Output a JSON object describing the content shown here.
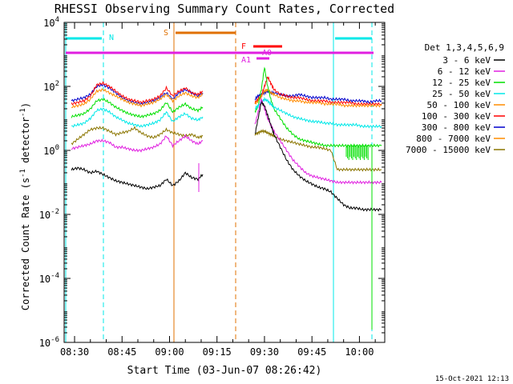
{
  "chart_data": {
    "type": "line",
    "title": "RHESSI Observing Summary Count Rates, Corrected",
    "xlabel": "Start Time (03-Jun-07 08:26:42)",
    "ylabel_main": "Corrected Count Rate (s",
    "ylabel_sup1": "-1",
    "ylabel_mid": " detector",
    "ylabel_sup2": "-1",
    "ylabel_end": ")",
    "timestamp": "15-Oct-2021 12:13",
    "x_ticks": [
      "08:30",
      "08:45",
      "09:00",
      "09:15",
      "09:30",
      "09:45",
      "10:00"
    ],
    "x_tick_minutes": [
      510,
      525,
      540,
      555,
      570,
      585,
      600
    ],
    "xlim_minutes": [
      506.7,
      608.0
    ],
    "y_log": true,
    "ylim_exp": [
      -6,
      4
    ],
    "y_tick_exps": [
      4,
      2,
      0,
      -2,
      -4,
      -6
    ],
    "y_tick_base": "10",
    "legend_title": "Det 1,3,4,5,6,9",
    "series": [
      {
        "name": "3 - 6 keV",
        "color": "#000000"
      },
      {
        "name": "6 - 12 keV",
        "color": "#e020e0"
      },
      {
        "name": "12 - 25 keV",
        "color": "#00e000"
      },
      {
        "name": "25 - 50 keV",
        "color": "#00e8e8"
      },
      {
        "name": "50 - 100 keV",
        "color": "#ff8c00"
      },
      {
        "name": "100 - 300 keV",
        "color": "#ff0000"
      },
      {
        "name": "300 - 800 keV",
        "color": "#0000cc"
      },
      {
        "name": "800 - 7000 keV",
        "color": "#ff8c00"
      },
      {
        "name": "7000 - 15000 keV",
        "color": "#8b7500"
      }
    ],
    "flags": [
      {
        "label": "N",
        "color": "#00e8e8"
      },
      {
        "label": "S",
        "color": "#e07000"
      },
      {
        "label": "F",
        "color": "#ff0000"
      },
      {
        "label": "A0",
        "color": "#e020e0"
      },
      {
        "label": "A1",
        "color": "#e020e0"
      }
    ],
    "curves": {
      "seg1_x": [
        509,
        511,
        513,
        515,
        517,
        519,
        521,
        523,
        525,
        527,
        529,
        531,
        533,
        535,
        537,
        539,
        541,
        543,
        545,
        547,
        549,
        550.5
      ],
      "seg2_x": [
        567,
        568,
        569,
        570,
        571,
        572,
        573,
        575,
        577,
        579,
        581,
        583,
        585,
        587,
        589,
        591,
        593,
        595,
        597,
        599,
        601,
        603,
        605,
        607
      ],
      "blue": {
        "seg1": [
          1.55,
          1.6,
          1.65,
          1.75,
          2.0,
          2.05,
          1.95,
          1.8,
          1.65,
          1.55,
          1.5,
          1.45,
          1.5,
          1.55,
          1.65,
          1.8,
          1.6,
          1.8,
          1.9,
          1.8,
          1.7,
          1.8
        ],
        "seg2": [
          1.6,
          1.7,
          1.75,
          1.8,
          1.85,
          1.8,
          1.8,
          1.75,
          1.7,
          1.7,
          1.75,
          1.7,
          1.65,
          1.65,
          1.65,
          1.6,
          1.6,
          1.6,
          1.55,
          1.55,
          1.55,
          1.5,
          1.55,
          1.55
        ]
      },
      "red": {
        "seg1": [
          1.45,
          1.5,
          1.55,
          1.7,
          2.05,
          2.1,
          2.0,
          1.85,
          1.7,
          1.6,
          1.55,
          1.5,
          1.55,
          1.6,
          1.7,
          1.95,
          1.7,
          1.85,
          1.95,
          1.8,
          1.75,
          1.85
        ],
        "seg2": [
          1.5,
          1.6,
          1.7,
          2.0,
          2.3,
          2.1,
          1.9,
          1.75,
          1.7,
          1.65,
          1.65,
          1.6,
          1.55,
          1.55,
          1.55,
          1.5,
          1.5,
          1.5,
          1.5,
          1.45,
          1.45,
          1.45,
          1.45,
          1.45
        ]
      },
      "orange": {
        "seg1": [
          1.35,
          1.4,
          1.45,
          1.6,
          1.85,
          1.9,
          1.8,
          1.7,
          1.6,
          1.5,
          1.45,
          1.4,
          1.45,
          1.5,
          1.6,
          1.75,
          1.55,
          1.7,
          1.8,
          1.7,
          1.65,
          1.75
        ],
        "seg2": [
          1.45,
          1.55,
          1.7,
          1.85,
          1.9,
          1.8,
          1.75,
          1.65,
          1.6,
          1.55,
          1.55,
          1.5,
          1.5,
          1.5,
          1.45,
          1.45,
          1.45,
          1.4,
          1.4,
          1.4,
          1.4,
          1.4,
          1.4,
          1.4
        ]
      },
      "green": {
        "seg1": [
          1.05,
          1.1,
          1.15,
          1.3,
          1.55,
          1.6,
          1.5,
          1.35,
          1.25,
          1.15,
          1.1,
          1.05,
          1.1,
          1.15,
          1.25,
          1.5,
          1.2,
          1.35,
          1.45,
          1.3,
          1.25,
          1.35
        ],
        "seg2": [
          1.2,
          1.4,
          1.9,
          2.6,
          2.0,
          1.6,
          1.3,
          1.0,
          0.7,
          0.5,
          0.35,
          0.3,
          0.25,
          0.2,
          0.15,
          0.15,
          0.15,
          0.15,
          0.15,
          0.15,
          0.15,
          0.15,
          0.15,
          0.15
        ]
      },
      "cyan": {
        "seg1": [
          0.75,
          0.8,
          0.85,
          1.0,
          1.25,
          1.3,
          1.2,
          1.05,
          0.95,
          0.85,
          0.8,
          0.75,
          0.8,
          0.85,
          0.95,
          1.2,
          0.9,
          1.05,
          1.15,
          1.0,
          0.95,
          1.05
        ],
        "seg2": [
          1.3,
          1.4,
          1.5,
          1.6,
          1.55,
          1.45,
          1.35,
          1.25,
          1.15,
          1.05,
          1.0,
          0.95,
          0.9,
          0.9,
          0.85,
          0.85,
          0.8,
          0.8,
          0.8,
          0.8,
          0.75,
          0.75,
          0.75,
          0.75
        ]
      },
      "olive": {
        "seg1": [
          0.2,
          0.35,
          0.5,
          0.65,
          0.7,
          0.7,
          0.6,
          0.5,
          0.55,
          0.6,
          0.7,
          0.55,
          0.45,
          0.4,
          0.5,
          0.65,
          0.55,
          0.5,
          0.45,
          0.5,
          0.4,
          0.45
        ],
        "seg2": [
          0.5,
          0.55,
          0.6,
          0.6,
          0.55,
          0.5,
          0.45,
          0.35,
          0.3,
          0.25,
          0.2,
          0.15,
          0.1,
          0.1,
          0.05,
          0.0,
          -0.6,
          -0.6,
          -0.6,
          -0.6,
          -0.6,
          -0.6,
          -0.6,
          -0.6
        ]
      },
      "magenta": {
        "seg1": [
          0.05,
          0.1,
          0.15,
          0.2,
          0.3,
          0.3,
          0.25,
          0.1,
          0.1,
          0.05,
          0.0,
          0.0,
          0.05,
          0.1,
          0.2,
          0.45,
          0.15,
          0.3,
          0.45,
          0.3,
          0.2,
          0.3
        ],
        "seg2": [
          0.8,
          1.2,
          1.6,
          1.3,
          1.0,
          0.8,
          0.6,
          0.3,
          0.0,
          -0.3,
          -0.5,
          -0.7,
          -0.8,
          -0.85,
          -0.9,
          -0.95,
          -1.0,
          -1.0,
          -1.0,
          -1.0,
          -1.0,
          -1.0,
          -1.0,
          -1.0
        ]
      },
      "black": {
        "seg1": [
          -0.6,
          -0.55,
          -0.6,
          -0.7,
          -0.65,
          -0.75,
          -0.85,
          -0.95,
          -1.0,
          -1.05,
          -1.1,
          -1.15,
          -1.2,
          -1.15,
          -1.1,
          -0.9,
          -1.1,
          -0.95,
          -0.7,
          -0.85,
          -0.9,
          -0.75
        ],
        "seg2": [
          0.5,
          1.0,
          1.5,
          1.4,
          1.1,
          0.8,
          0.5,
          0.1,
          -0.3,
          -0.6,
          -0.8,
          -0.95,
          -1.05,
          -1.15,
          -1.2,
          -1.3,
          -1.5,
          -1.7,
          -1.8,
          -1.8,
          -1.85,
          -1.85,
          -1.85,
          -1.85
        ]
      }
    }
  }
}
